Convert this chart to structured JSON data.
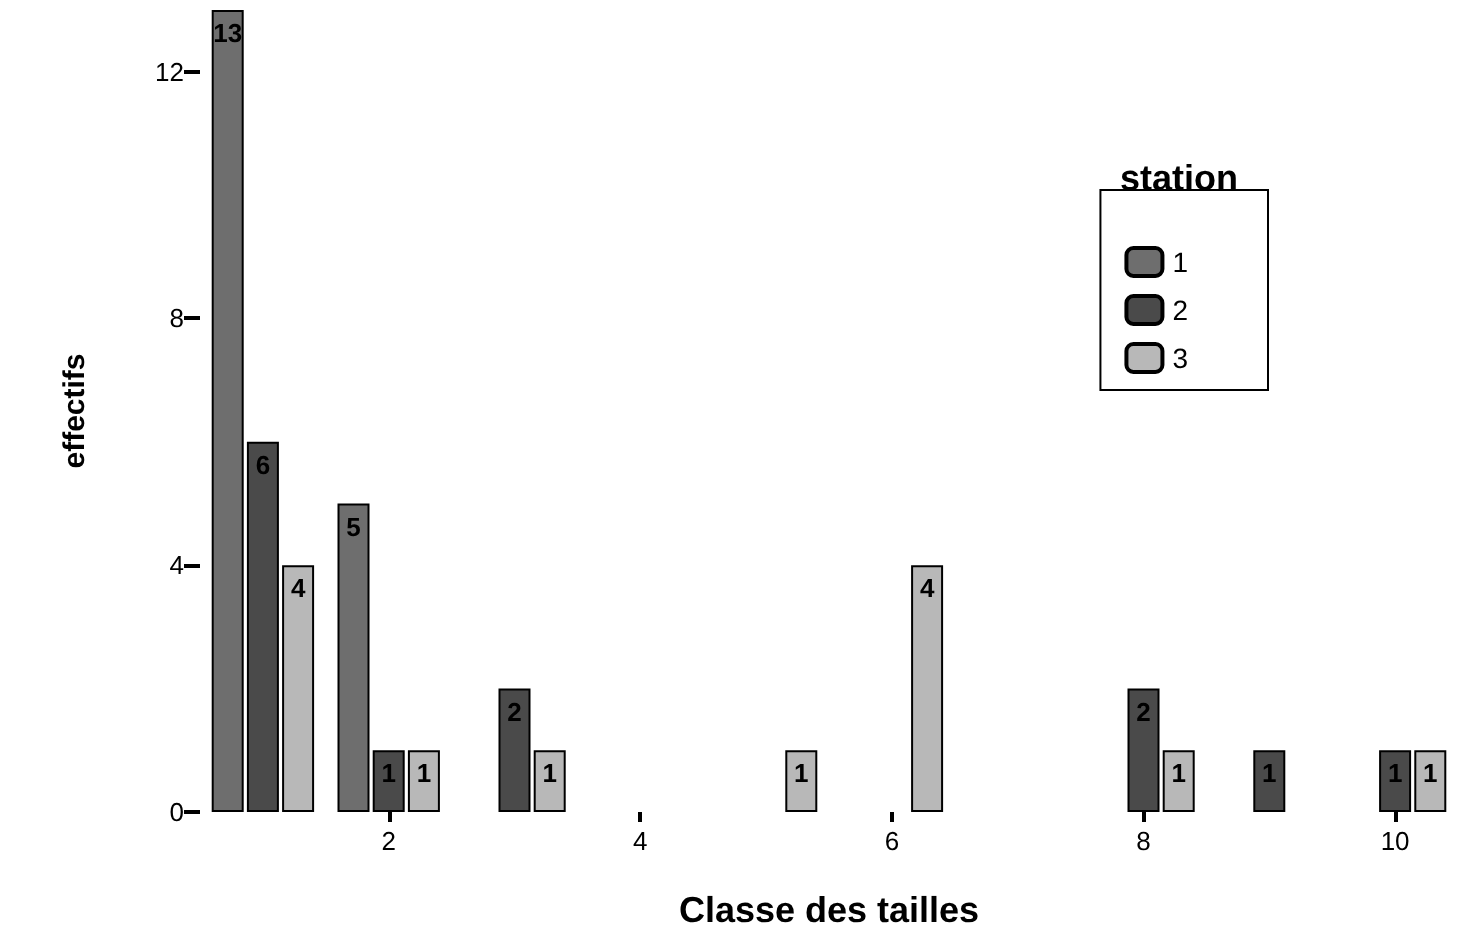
{
  "chart_data": {
    "type": "bar",
    "xlabel": "Classe des tailles",
    "ylabel": "effectifs",
    "legend_title": "station",
    "categories": [
      null,
      "2",
      null,
      "4",
      null,
      "6",
      null,
      "8",
      null,
      "10"
    ],
    "series": [
      {
        "name": "1",
        "color": "#6e6e6e",
        "values": [
          13,
          5,
          null,
          null,
          null,
          null,
          null,
          null,
          null,
          null
        ]
      },
      {
        "name": "2",
        "color": "#4a4a4a",
        "values": [
          6,
          1,
          2,
          null,
          null,
          null,
          null,
          2,
          1,
          1
        ]
      },
      {
        "name": "3",
        "color": "#b8b8b8",
        "values": [
          4,
          1,
          1,
          null,
          1,
          4,
          null,
          1,
          null,
          1
        ]
      }
    ],
    "ylim": [
      0,
      13
    ],
    "yticks": [
      0,
      4,
      8,
      12
    ],
    "grid": false,
    "legend": "top right",
    "data_labels": true
  }
}
